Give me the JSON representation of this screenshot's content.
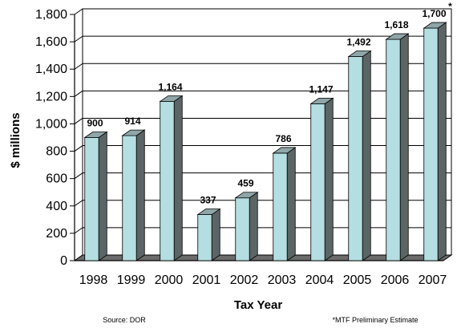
{
  "chart_data": {
    "type": "bar",
    "categories": [
      "1998",
      "1999",
      "2000",
      "2001",
      "2002",
      "2003",
      "2004",
      "2005",
      "2006",
      "2007"
    ],
    "values": [
      900,
      914,
      1164,
      337,
      459,
      786,
      1147,
      1492,
      1618,
      1700
    ],
    "value_labels": [
      "900",
      "914",
      "1,164",
      "337",
      "459",
      "786",
      "1,147",
      "1,492",
      "1,618",
      "1,700"
    ],
    "xlabel": "Tax Year",
    "ylabel": "$ millions",
    "ylim": [
      0,
      1800
    ],
    "yticks": [
      0,
      200,
      400,
      600,
      800,
      1000,
      1200,
      1400,
      1600,
      1800
    ],
    "ytick_labels": [
      "0",
      "200",
      "400",
      "600",
      "800",
      "1,000",
      "1,200",
      "1,400",
      "1,600",
      "1,800"
    ],
    "grid": true,
    "style": "3d-bar",
    "bar_color": "#b4dee2",
    "bar_side_color": "#5c6566",
    "last_label_marker": "*",
    "source_note": "Source: DOR",
    "footnote": "*MTF Preliminary Estimate"
  }
}
